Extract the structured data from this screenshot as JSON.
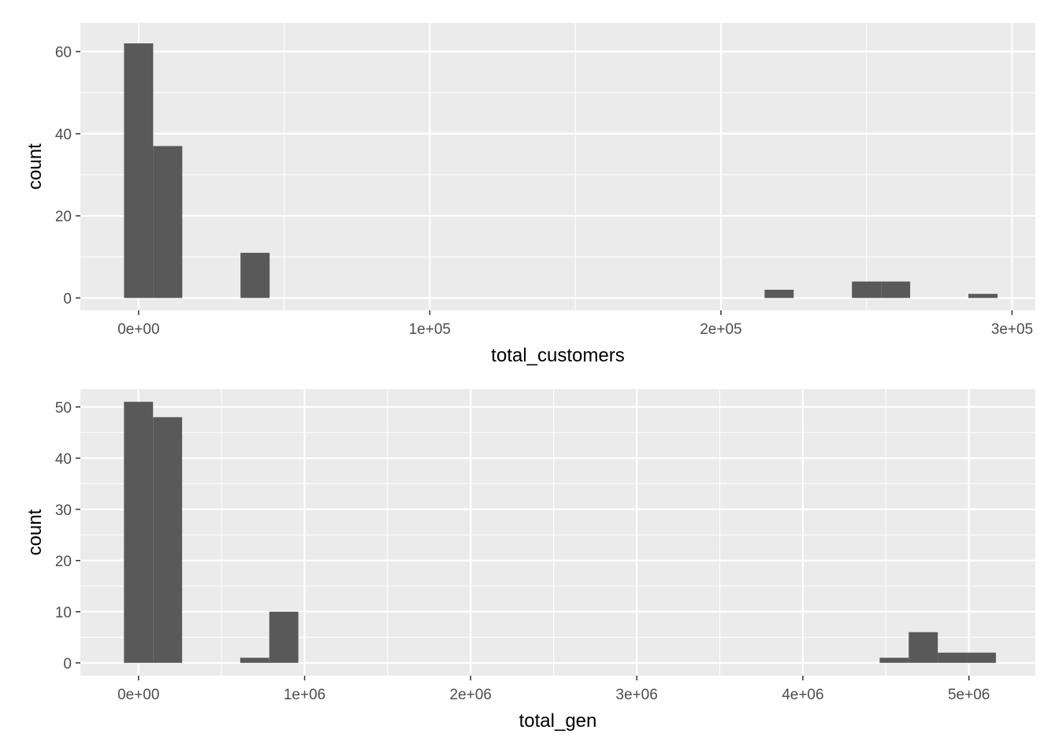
{
  "chart_data": [
    {
      "type": "histogram",
      "xlabel": "total_customers",
      "ylabel": "count",
      "xlim": [
        -20000,
        308000
      ],
      "ylim": [
        -3,
        67
      ],
      "x_major_ticks": [
        0,
        100000,
        200000,
        300000
      ],
      "x_tick_labels": [
        "0e+00",
        "1e+05",
        "2e+05",
        "3e+05"
      ],
      "x_minor_ticks": [
        50000,
        150000,
        250000
      ],
      "y_major_ticks": [
        0,
        20,
        40,
        60
      ],
      "y_tick_labels": [
        "0",
        "20",
        "40",
        "60"
      ],
      "y_minor_ticks": [
        10,
        30,
        50
      ],
      "bin_width": 10000,
      "bins": [
        {
          "x0": -5000,
          "x1": 5000,
          "count": 62
        },
        {
          "x0": 5000,
          "x1": 15000,
          "count": 37
        },
        {
          "x0": 35000,
          "x1": 45000,
          "count": 11
        },
        {
          "x0": 215000,
          "x1": 225000,
          "count": 2
        },
        {
          "x0": 245000,
          "x1": 255000,
          "count": 4
        },
        {
          "x0": 255000,
          "x1": 265000,
          "count": 4
        },
        {
          "x0": 285000,
          "x1": 295000,
          "count": 1
        }
      ],
      "panel_color": "#ebebeb",
      "bar_color": "#595959",
      "grid": true
    },
    {
      "type": "histogram",
      "xlabel": "total_gen",
      "ylabel": "count",
      "xlim": [
        -350000,
        5400000
      ],
      "ylim": [
        -2.5,
        53.5
      ],
      "x_major_ticks": [
        0,
        1000000,
        2000000,
        3000000,
        4000000,
        5000000
      ],
      "x_tick_labels": [
        "0e+00",
        "1e+06",
        "2e+06",
        "3e+06",
        "4e+06",
        "5e+06"
      ],
      "x_minor_ticks": [
        500000,
        1500000,
        2500000,
        3500000,
        4500000
      ],
      "y_major_ticks": [
        0,
        10,
        20,
        30,
        40,
        50
      ],
      "y_tick_labels": [
        "0",
        "10",
        "20",
        "30",
        "40",
        "50"
      ],
      "y_minor_ticks": [
        5,
        15,
        25,
        35,
        45
      ],
      "bin_width": 175000,
      "bins": [
        {
          "x0": -87500,
          "x1": 87500,
          "count": 51
        },
        {
          "x0": 87500,
          "x1": 262500,
          "count": 48
        },
        {
          "x0": 612500,
          "x1": 787500,
          "count": 1
        },
        {
          "x0": 787500,
          "x1": 962500,
          "count": 10
        },
        {
          "x0": 4462500,
          "x1": 4637500,
          "count": 1
        },
        {
          "x0": 4637500,
          "x1": 4812500,
          "count": 6
        },
        {
          "x0": 4812500,
          "x1": 4987500,
          "count": 2
        },
        {
          "x0": 4987500,
          "x1": 5162500,
          "count": 2
        }
      ],
      "panel_color": "#ebebeb",
      "bar_color": "#595959",
      "grid": true
    }
  ]
}
